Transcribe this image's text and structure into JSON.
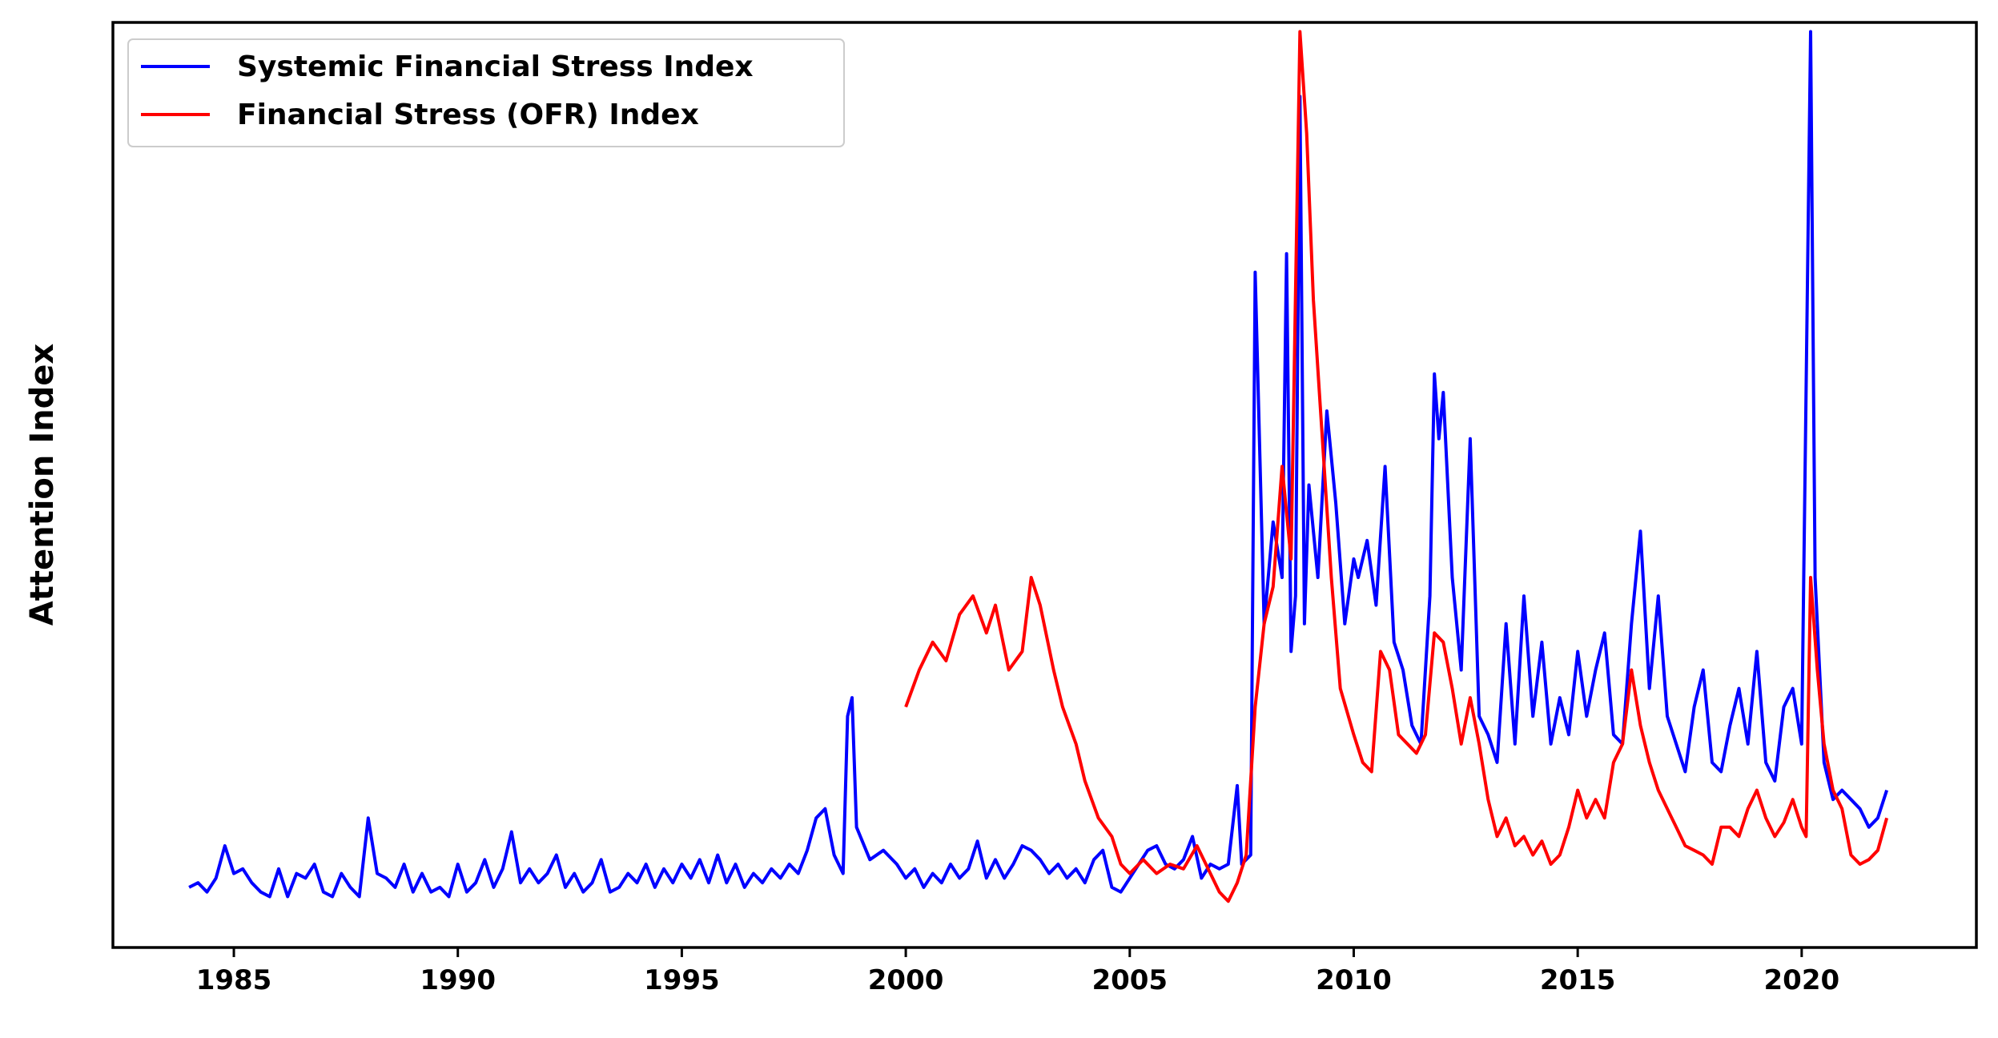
{
  "chart_data": {
    "type": "line",
    "title": "",
    "xlabel": "",
    "ylabel": "Attention Index",
    "xlim": [
      1982.3,
      2023.9
    ],
    "ylim": [
      0,
      100
    ],
    "xticks": [
      1985,
      1990,
      1995,
      2000,
      2005,
      2010,
      2015,
      2020
    ],
    "xtick_labels": [
      "1985",
      "1990",
      "1995",
      "2000",
      "2005",
      "2010",
      "2015",
      "2020"
    ],
    "yticks_shown": false,
    "grid": false,
    "legend": {
      "placement": "top-left"
    },
    "series": [
      {
        "name": "Systemic Financial Stress Index",
        "color": "#0000ff",
        "points": [
          [
            1984.0,
            6.5
          ],
          [
            1984.2,
            7.0
          ],
          [
            1984.4,
            6.0
          ],
          [
            1984.6,
            7.5
          ],
          [
            1984.8,
            11.0
          ],
          [
            1985.0,
            8.0
          ],
          [
            1985.2,
            8.5
          ],
          [
            1985.4,
            7.0
          ],
          [
            1985.6,
            6.0
          ],
          [
            1985.8,
            5.5
          ],
          [
            1986.0,
            8.5
          ],
          [
            1986.2,
            5.5
          ],
          [
            1986.4,
            8.0
          ],
          [
            1986.6,
            7.5
          ],
          [
            1986.8,
            9.0
          ],
          [
            1987.0,
            6.0
          ],
          [
            1987.2,
            5.5
          ],
          [
            1987.4,
            8.0
          ],
          [
            1987.6,
            6.5
          ],
          [
            1987.8,
            5.5
          ],
          [
            1988.0,
            14.0
          ],
          [
            1988.2,
            8.0
          ],
          [
            1988.4,
            7.5
          ],
          [
            1988.6,
            6.5
          ],
          [
            1988.8,
            9.0
          ],
          [
            1989.0,
            6.0
          ],
          [
            1989.2,
            8.0
          ],
          [
            1989.4,
            6.0
          ],
          [
            1989.6,
            6.5
          ],
          [
            1989.8,
            5.5
          ],
          [
            1990.0,
            9.0
          ],
          [
            1990.2,
            6.0
          ],
          [
            1990.4,
            7.0
          ],
          [
            1990.6,
            9.5
          ],
          [
            1990.8,
            6.5
          ],
          [
            1991.0,
            8.5
          ],
          [
            1991.2,
            12.5
          ],
          [
            1991.4,
            7.0
          ],
          [
            1991.6,
            8.5
          ],
          [
            1991.8,
            7.0
          ],
          [
            1992.0,
            8.0
          ],
          [
            1992.2,
            10.0
          ],
          [
            1992.4,
            6.5
          ],
          [
            1992.6,
            8.0
          ],
          [
            1992.8,
            6.0
          ],
          [
            1993.0,
            7.0
          ],
          [
            1993.2,
            9.5
          ],
          [
            1993.4,
            6.0
          ],
          [
            1993.6,
            6.5
          ],
          [
            1993.8,
            8.0
          ],
          [
            1994.0,
            7.0
          ],
          [
            1994.2,
            9.0
          ],
          [
            1994.4,
            6.5
          ],
          [
            1994.6,
            8.5
          ],
          [
            1994.8,
            7.0
          ],
          [
            1995.0,
            9.0
          ],
          [
            1995.2,
            7.5
          ],
          [
            1995.4,
            9.5
          ],
          [
            1995.6,
            7.0
          ],
          [
            1995.8,
            10.0
          ],
          [
            1996.0,
            7.0
          ],
          [
            1996.2,
            9.0
          ],
          [
            1996.4,
            6.5
          ],
          [
            1996.6,
            8.0
          ],
          [
            1996.8,
            7.0
          ],
          [
            1997.0,
            8.5
          ],
          [
            1997.2,
            7.5
          ],
          [
            1997.4,
            9.0
          ],
          [
            1997.6,
            8.0
          ],
          [
            1997.8,
            10.5
          ],
          [
            1998.0,
            14.0
          ],
          [
            1998.2,
            15.0
          ],
          [
            1998.4,
            10.0
          ],
          [
            1998.6,
            8.0
          ],
          [
            1998.7,
            25.0
          ],
          [
            1998.8,
            27.0
          ],
          [
            1998.9,
            13.0
          ],
          [
            1999.2,
            9.5
          ],
          [
            1999.5,
            10.5
          ],
          [
            1999.8,
            9.0
          ],
          [
            2000.0,
            7.5
          ],
          [
            2000.2,
            8.5
          ],
          [
            2000.4,
            6.5
          ],
          [
            2000.6,
            8.0
          ],
          [
            2000.8,
            7.0
          ],
          [
            2001.0,
            9.0
          ],
          [
            2001.2,
            7.5
          ],
          [
            2001.4,
            8.5
          ],
          [
            2001.6,
            11.5
          ],
          [
            2001.8,
            7.5
          ],
          [
            2002.0,
            9.5
          ],
          [
            2002.2,
            7.5
          ],
          [
            2002.4,
            9.0
          ],
          [
            2002.6,
            11.0
          ],
          [
            2002.8,
            10.5
          ],
          [
            2003.0,
            9.5
          ],
          [
            2003.2,
            8.0
          ],
          [
            2003.4,
            9.0
          ],
          [
            2003.6,
            7.5
          ],
          [
            2003.8,
            8.5
          ],
          [
            2004.0,
            7.0
          ],
          [
            2004.2,
            9.5
          ],
          [
            2004.4,
            10.5
          ],
          [
            2004.6,
            6.5
          ],
          [
            2004.8,
            6.0
          ],
          [
            2005.0,
            7.5
          ],
          [
            2005.2,
            9.0
          ],
          [
            2005.4,
            10.5
          ],
          [
            2005.6,
            11.0
          ],
          [
            2005.8,
            9.0
          ],
          [
            2006.0,
            8.5
          ],
          [
            2006.2,
            9.5
          ],
          [
            2006.4,
            12.0
          ],
          [
            2006.6,
            7.5
          ],
          [
            2006.8,
            9.0
          ],
          [
            2007.0,
            8.5
          ],
          [
            2007.2,
            9.0
          ],
          [
            2007.4,
            17.5
          ],
          [
            2007.5,
            9.0
          ],
          [
            2007.7,
            10.0
          ],
          [
            2007.8,
            73.0
          ],
          [
            2008.0,
            35.0
          ],
          [
            2008.2,
            46.0
          ],
          [
            2008.4,
            40.0
          ],
          [
            2008.5,
            75.0
          ],
          [
            2008.6,
            32.0
          ],
          [
            2008.7,
            38.0
          ],
          [
            2008.8,
            92.0
          ],
          [
            2008.9,
            35.0
          ],
          [
            2009.0,
            50.0
          ],
          [
            2009.2,
            40.0
          ],
          [
            2009.4,
            58.0
          ],
          [
            2009.6,
            48.0
          ],
          [
            2009.8,
            35.0
          ],
          [
            2010.0,
            42.0
          ],
          [
            2010.1,
            40.0
          ],
          [
            2010.3,
            44.0
          ],
          [
            2010.5,
            37.0
          ],
          [
            2010.7,
            52.0
          ],
          [
            2010.9,
            33.0
          ],
          [
            2011.1,
            30.0
          ],
          [
            2011.3,
            24.0
          ],
          [
            2011.5,
            22.0
          ],
          [
            2011.7,
            38.0
          ],
          [
            2011.8,
            62.0
          ],
          [
            2011.9,
            55.0
          ],
          [
            2012.0,
            60.0
          ],
          [
            2012.2,
            40.0
          ],
          [
            2012.4,
            30.0
          ],
          [
            2012.6,
            55.0
          ],
          [
            2012.8,
            25.0
          ],
          [
            2013.0,
            23.0
          ],
          [
            2013.2,
            20.0
          ],
          [
            2013.4,
            35.0
          ],
          [
            2013.6,
            22.0
          ],
          [
            2013.8,
            38.0
          ],
          [
            2014.0,
            25.0
          ],
          [
            2014.2,
            33.0
          ],
          [
            2014.4,
            22.0
          ],
          [
            2014.6,
            27.0
          ],
          [
            2014.8,
            23.0
          ],
          [
            2015.0,
            32.0
          ],
          [
            2015.2,
            25.0
          ],
          [
            2015.4,
            30.0
          ],
          [
            2015.6,
            34.0
          ],
          [
            2015.8,
            23.0
          ],
          [
            2016.0,
            22.0
          ],
          [
            2016.2,
            35.0
          ],
          [
            2016.4,
            45.0
          ],
          [
            2016.6,
            28.0
          ],
          [
            2016.8,
            38.0
          ],
          [
            2017.0,
            25.0
          ],
          [
            2017.2,
            22.0
          ],
          [
            2017.4,
            19.0
          ],
          [
            2017.6,
            26.0
          ],
          [
            2017.8,
            30.0
          ],
          [
            2018.0,
            20.0
          ],
          [
            2018.2,
            19.0
          ],
          [
            2018.4,
            24.0
          ],
          [
            2018.6,
            28.0
          ],
          [
            2018.8,
            22.0
          ],
          [
            2019.0,
            32.0
          ],
          [
            2019.2,
            20.0
          ],
          [
            2019.4,
            18.0
          ],
          [
            2019.6,
            26.0
          ],
          [
            2019.8,
            28.0
          ],
          [
            2020.0,
            22.0
          ],
          [
            2020.2,
            99.0
          ],
          [
            2020.3,
            40.0
          ],
          [
            2020.5,
            20.0
          ],
          [
            2020.7,
            16.0
          ],
          [
            2020.9,
            17.0
          ],
          [
            2021.1,
            16.0
          ],
          [
            2021.3,
            15.0
          ],
          [
            2021.5,
            13.0
          ],
          [
            2021.7,
            14.0
          ],
          [
            2021.9,
            17.0
          ]
        ]
      },
      {
        "name": "Financial Stress (OFR) Index",
        "color": "#ff0000",
        "points": [
          [
            2000.0,
            26.0
          ],
          [
            2000.3,
            30.0
          ],
          [
            2000.6,
            33.0
          ],
          [
            2000.9,
            31.0
          ],
          [
            2001.2,
            36.0
          ],
          [
            2001.5,
            38.0
          ],
          [
            2001.8,
            34.0
          ],
          [
            2002.0,
            37.0
          ],
          [
            2002.3,
            30.0
          ],
          [
            2002.6,
            32.0
          ],
          [
            2002.8,
            40.0
          ],
          [
            2003.0,
            37.0
          ],
          [
            2003.3,
            30.0
          ],
          [
            2003.5,
            26.0
          ],
          [
            2003.8,
            22.0
          ],
          [
            2004.0,
            18.0
          ],
          [
            2004.3,
            14.0
          ],
          [
            2004.6,
            12.0
          ],
          [
            2004.8,
            9.0
          ],
          [
            2005.0,
            8.0
          ],
          [
            2005.3,
            9.5
          ],
          [
            2005.6,
            8.0
          ],
          [
            2005.9,
            9.0
          ],
          [
            2006.2,
            8.5
          ],
          [
            2006.5,
            11.0
          ],
          [
            2006.8,
            8.0
          ],
          [
            2007.0,
            6.0
          ],
          [
            2007.2,
            5.0
          ],
          [
            2007.4,
            7.0
          ],
          [
            2007.6,
            10.0
          ],
          [
            2007.8,
            26.0
          ],
          [
            2008.0,
            35.0
          ],
          [
            2008.2,
            39.0
          ],
          [
            2008.4,
            52.0
          ],
          [
            2008.6,
            42.0
          ],
          [
            2008.8,
            99.0
          ],
          [
            2008.95,
            88.0
          ],
          [
            2009.1,
            70.0
          ],
          [
            2009.3,
            55.0
          ],
          [
            2009.5,
            40.0
          ],
          [
            2009.7,
            28.0
          ],
          [
            2010.0,
            23.0
          ],
          [
            2010.2,
            20.0
          ],
          [
            2010.4,
            19.0
          ],
          [
            2010.6,
            32.0
          ],
          [
            2010.8,
            30.0
          ],
          [
            2011.0,
            23.0
          ],
          [
            2011.2,
            22.0
          ],
          [
            2011.4,
            21.0
          ],
          [
            2011.6,
            23.0
          ],
          [
            2011.8,
            34.0
          ],
          [
            2012.0,
            33.0
          ],
          [
            2012.2,
            28.0
          ],
          [
            2012.4,
            22.0
          ],
          [
            2012.6,
            27.0
          ],
          [
            2012.8,
            22.0
          ],
          [
            2013.0,
            16.0
          ],
          [
            2013.2,
            12.0
          ],
          [
            2013.4,
            14.0
          ],
          [
            2013.6,
            11.0
          ],
          [
            2013.8,
            12.0
          ],
          [
            2014.0,
            10.0
          ],
          [
            2014.2,
            11.5
          ],
          [
            2014.4,
            9.0
          ],
          [
            2014.6,
            10.0
          ],
          [
            2014.8,
            13.0
          ],
          [
            2015.0,
            17.0
          ],
          [
            2015.2,
            14.0
          ],
          [
            2015.4,
            16.0
          ],
          [
            2015.6,
            14.0
          ],
          [
            2015.8,
            20.0
          ],
          [
            2016.0,
            22.0
          ],
          [
            2016.2,
            30.0
          ],
          [
            2016.4,
            24.0
          ],
          [
            2016.6,
            20.0
          ],
          [
            2016.8,
            17.0
          ],
          [
            2017.0,
            15.0
          ],
          [
            2017.2,
            13.0
          ],
          [
            2017.4,
            11.0
          ],
          [
            2017.6,
            10.5
          ],
          [
            2017.8,
            10.0
          ],
          [
            2018.0,
            9.0
          ],
          [
            2018.2,
            13.0
          ],
          [
            2018.4,
            13.0
          ],
          [
            2018.6,
            12.0
          ],
          [
            2018.8,
            15.0
          ],
          [
            2019.0,
            17.0
          ],
          [
            2019.2,
            14.0
          ],
          [
            2019.4,
            12.0
          ],
          [
            2019.6,
            13.5
          ],
          [
            2019.8,
            16.0
          ],
          [
            2020.0,
            13.0
          ],
          [
            2020.1,
            12.0
          ],
          [
            2020.2,
            40.0
          ],
          [
            2020.35,
            30.0
          ],
          [
            2020.5,
            22.0
          ],
          [
            2020.7,
            17.0
          ],
          [
            2020.9,
            15.0
          ],
          [
            2021.1,
            10.0
          ],
          [
            2021.3,
            9.0
          ],
          [
            2021.5,
            9.5
          ],
          [
            2021.7,
            10.5
          ],
          [
            2021.9,
            14.0
          ]
        ]
      }
    ]
  }
}
